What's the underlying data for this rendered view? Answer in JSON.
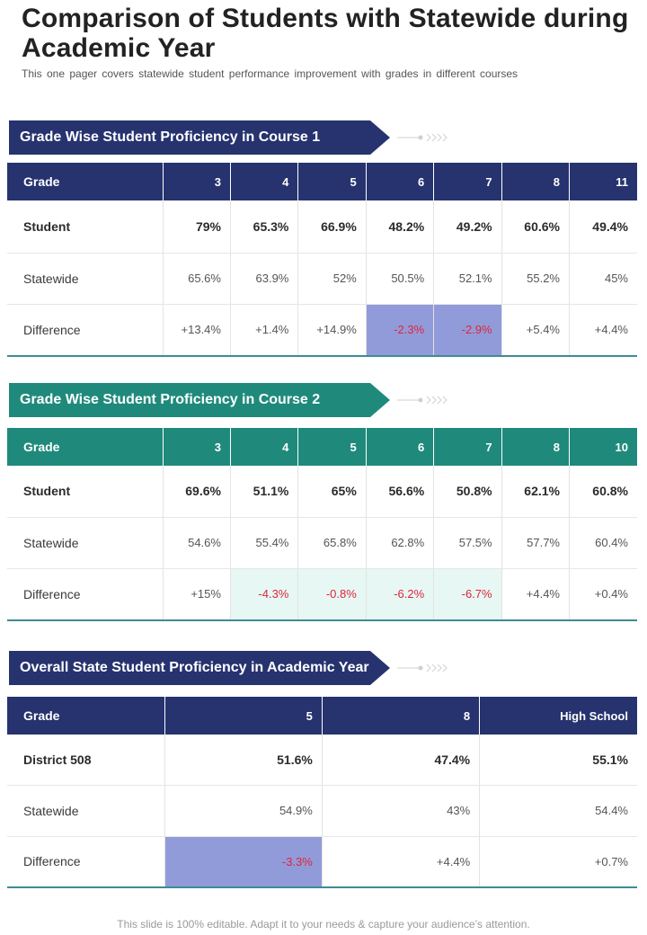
{
  "page": {
    "title": "Comparison of Students with Statewide during Academic Year",
    "subtitle": "This one pager covers statewide student performance improvement with grades in different courses",
    "footer": "This slide is 100% editable. Adapt it to your needs & capture your audience’s attention."
  },
  "colors": {
    "navy": "#26336f",
    "teal": "#1f8a7b",
    "negative": "#e0253a",
    "highlight_purple": "#929bd9",
    "highlight_mint": "#e6f7f4"
  },
  "course1": {
    "heading": "Grade Wise Student Proficiency in Course 1",
    "columns": [
      "Grade",
      "3",
      "4",
      "5",
      "6",
      "7",
      "8",
      "11"
    ],
    "student": [
      "Student",
      "79%",
      "65.3%",
      "66.9%",
      "48.2%",
      "49.2%",
      "60.6%",
      "49.4%"
    ],
    "statewide": [
      "Statewide",
      "65.6%",
      "63.9%",
      "52%",
      "50.5%",
      "52.1%",
      "55.2%",
      "45%"
    ],
    "difference": [
      "Difference",
      "+13.4%",
      "+1.4%",
      "+14.9%",
      "-2.3%",
      "-2.9%",
      "+5.4%",
      "+4.4%"
    ]
  },
  "course2": {
    "heading": "Grade Wise Student Proficiency in Course 2",
    "columns": [
      "Grade",
      "3",
      "4",
      "5",
      "6",
      "7",
      "8",
      "10"
    ],
    "student": [
      "Student",
      "69.6%",
      "51.1%",
      "65%",
      "56.6%",
      "50.8%",
      "62.1%",
      "60.8%"
    ],
    "statewide": [
      "Statewide",
      "54.6%",
      "55.4%",
      "65.8%",
      "62.8%",
      "57.5%",
      "57.7%",
      "60.4%"
    ],
    "difference": [
      "Difference",
      "+15%",
      "-4.3%",
      "-0.8%",
      "-6.2%",
      "-6.7%",
      "+4.4%",
      "+0.4%"
    ]
  },
  "overall": {
    "heading": "Overall State Student Proficiency in Academic Year",
    "columns": [
      "Grade",
      "5",
      "8",
      "High School"
    ],
    "district": [
      "District 508",
      "51.6%",
      "47.4%",
      "55.1%"
    ],
    "statewide": [
      "Statewide",
      "54.9%",
      "43%",
      "54.4%"
    ],
    "difference": [
      "Difference",
      "-3.3%",
      "+4.4%",
      "+0.7%"
    ]
  }
}
